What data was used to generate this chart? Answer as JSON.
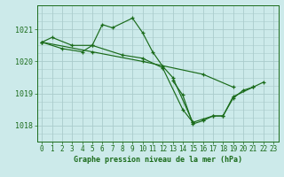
{
  "title": "Graphe pression niveau de la mer (hPa)",
  "background_color": "#cceaea",
  "grid_color": "#aacccc",
  "line_color": "#1a6b1a",
  "ylim": [
    1017.5,
    1021.75
  ],
  "xlim": [
    -0.5,
    23.5
  ],
  "yticks": [
    1018,
    1019,
    1020,
    1021
  ],
  "xticks": [
    0,
    1,
    2,
    3,
    4,
    5,
    6,
    7,
    8,
    9,
    10,
    11,
    12,
    13,
    14,
    15,
    16,
    17,
    18,
    19,
    20,
    21,
    22,
    23
  ],
  "series_connected": [
    {
      "x": [
        0,
        1,
        3,
        5,
        6,
        7,
        9,
        10,
        11,
        12,
        13,
        15
      ],
      "y": [
        1020.6,
        1020.75,
        1020.5,
        1020.5,
        1021.15,
        1021.05,
        1021.35,
        1020.9,
        1020.3,
        1019.85,
        1019.5,
        1018.1
      ]
    },
    {
      "x": [
        0,
        2,
        4,
        5,
        8,
        10,
        12,
        14,
        15,
        16,
        17,
        18,
        19,
        21,
        22
      ],
      "y": [
        1020.6,
        1020.4,
        1020.3,
        1020.5,
        1020.2,
        1020.1,
        1019.8,
        1018.5,
        1018.1,
        1018.2,
        1018.3,
        1018.3,
        1018.9,
        1019.2,
        1019.35
      ]
    },
    {
      "x": [
        0,
        5,
        10,
        16,
        19
      ],
      "y": [
        1020.6,
        1020.3,
        1020.0,
        1019.6,
        1019.2
      ]
    },
    {
      "x": [
        13,
        14,
        15,
        16,
        17,
        18,
        19,
        20,
        21
      ],
      "y": [
        1019.4,
        1018.95,
        1018.05,
        1018.15,
        1018.3,
        1018.3,
        1018.85,
        1019.1,
        1019.2
      ]
    }
  ]
}
